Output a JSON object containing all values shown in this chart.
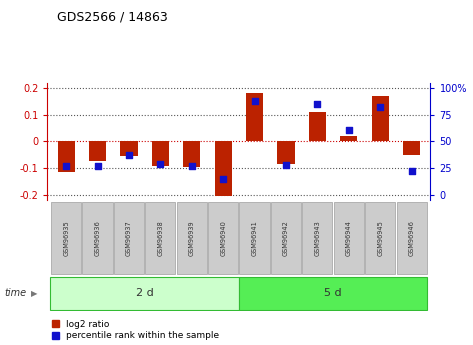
{
  "title": "GDS2566 / 14863",
  "samples": [
    "GSM96935",
    "GSM96936",
    "GSM96937",
    "GSM96938",
    "GSM96939",
    "GSM96940",
    "GSM96941",
    "GSM96942",
    "GSM96943",
    "GSM96944",
    "GSM96945",
    "GSM96946"
  ],
  "log2_ratio": [
    -0.115,
    -0.075,
    -0.055,
    -0.092,
    -0.095,
    -0.205,
    0.18,
    -0.085,
    0.11,
    0.02,
    0.17,
    -0.05
  ],
  "percentile_rank": [
    27,
    27,
    37,
    29,
    27,
    15,
    88,
    28,
    85,
    61,
    82,
    22
  ],
  "group1_label": "2 d",
  "group2_label": "5 d",
  "group1_count": 6,
  "group2_count": 6,
  "bar_color": "#bb2200",
  "dot_color": "#1111cc",
  "ylim_left": [
    -0.22,
    0.22
  ],
  "yticks_left": [
    -0.2,
    -0.1,
    0.0,
    0.1,
    0.2
  ],
  "yticks_right": [
    0,
    25,
    50,
    75,
    100
  ],
  "group1_color": "#ccffcc",
  "group2_color": "#55ee55",
  "sample_box_color": "#cccccc",
  "legend_label_red": "log2 ratio",
  "legend_label_blue": "percentile rank within the sample",
  "time_label": "time",
  "bar_width": 0.55,
  "dot_size": 25
}
